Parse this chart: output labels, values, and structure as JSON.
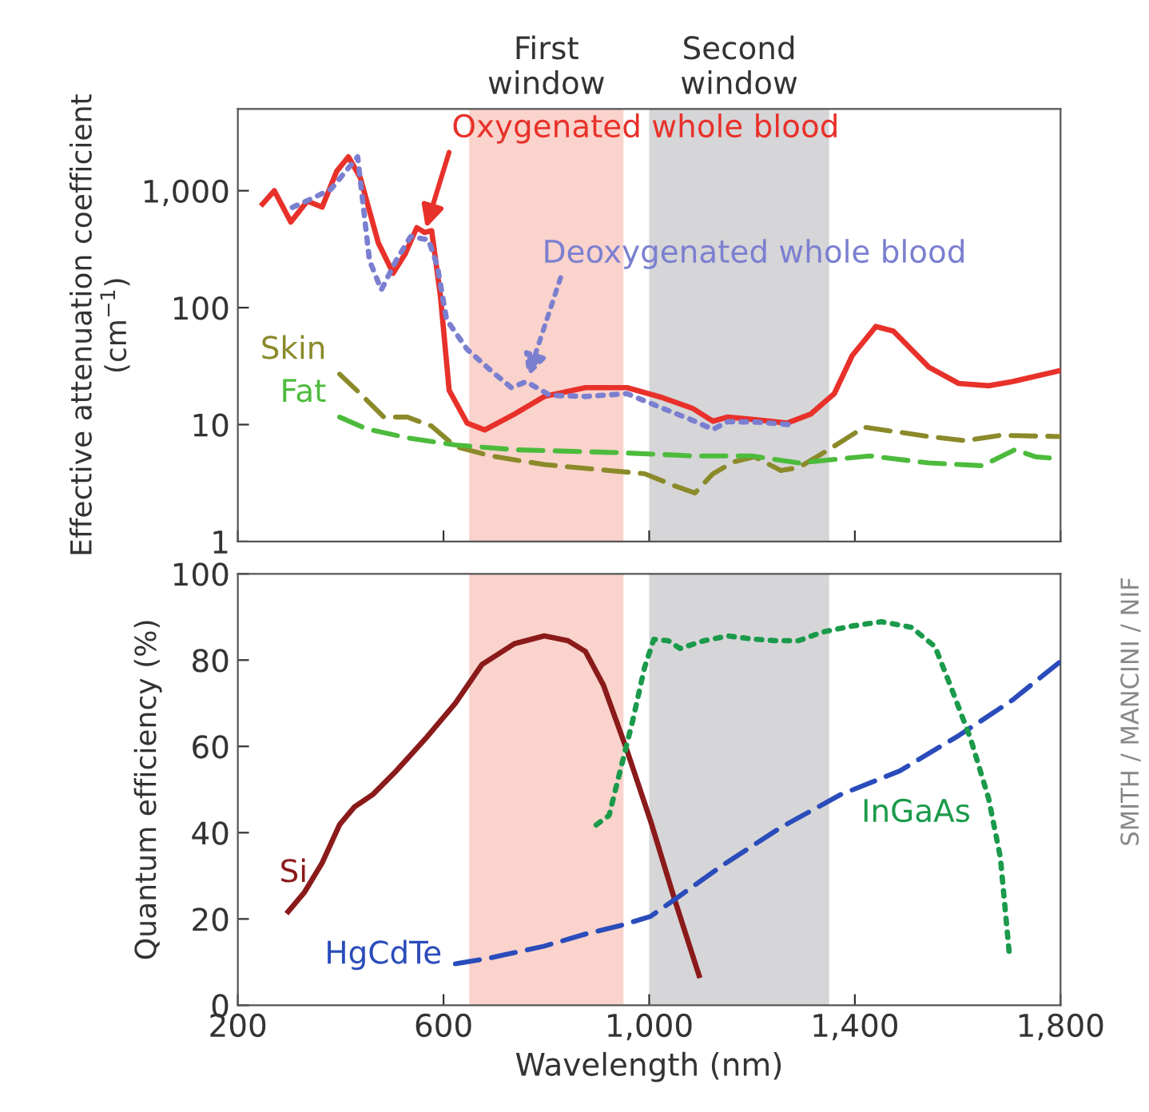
{
  "chart_data": [
    {
      "type": "line",
      "ylabel": "Effective attenuation coefficient\n(cm$^{−1}$)",
      "log": "y",
      "xlim": [
        200,
        1800
      ],
      "xticks": [
        200,
        600,
        1000,
        1400,
        1800
      ],
      "ylim": [
        1,
        5000
      ],
      "yticks": [
        1,
        10,
        100,
        {
          "value": 1000,
          "label": "1,000"
        }
      ],
      "tick_labels": "y",
      "grid": false,
      "legend": false,
      "bands": [
        {
          "axis": "x",
          "from": 650,
          "to": 950,
          "label": "First\nwindow",
          "color": "#f9d3cc"
        },
        {
          "axis": "x",
          "from": 1000,
          "to": 1350,
          "label": "Second\nwindow",
          "color": "#d6d5d7"
        }
      ],
      "series": [
        {
          "name": "Oxygenated whole blood",
          "color": "#e8312a",
          "line_style": "solid",
          "x": [
            248,
            271,
            303,
            335,
            364,
            392,
            415,
            438,
            473,
            502,
            525,
            548,
            563,
            577,
            594,
            611,
            646,
            680,
            738,
            796,
            876,
            957,
            1026,
            1084,
            1124,
            1153,
            1210,
            1268,
            1314,
            1360,
            1395,
            1441,
            1475,
            1544,
            1602,
            1660,
            1706,
            1800
          ],
          "values": [
            770,
            1000,
            540,
            815,
            725,
            1460,
            1950,
            1300,
            360,
            197,
            286,
            483,
            440,
            455,
            126,
            19.6,
            10.3,
            9,
            12.3,
            17.4,
            20.7,
            20.7,
            17,
            13.8,
            10.7,
            11.6,
            11,
            10.3,
            12.3,
            18.4,
            39,
            69,
            63,
            31,
            22.5,
            21.5,
            23.3,
            29
          ]
        },
        {
          "name": "Deoxygenated whole blood",
          "color": "#7b7fd0",
          "line_style": "dotted",
          "x": [
            306,
            346,
            381,
            433,
            456,
            479,
            508,
            536,
            571,
            588,
            606,
            646,
            692,
            732,
            761,
            807,
            876,
            957,
            1026,
            1084,
            1124,
            1153,
            1210,
            1274
          ],
          "values": [
            720,
            865,
            1030,
            1950,
            254,
            142,
            254,
            405,
            380,
            226,
            79,
            44,
            29,
            20.7,
            23.3,
            17.8,
            17.4,
            18.4,
            13.8,
            10.9,
            9.1,
            10.6,
            10.5,
            10
          ]
        },
        {
          "name": "Skin",
          "color": "#8b8a2a",
          "line_style": "dashed",
          "x": [
            398,
            438,
            484,
            530,
            577,
            623,
            692,
            796,
            922,
            991,
            1049,
            1089,
            1124,
            1164,
            1205,
            1256,
            1291,
            1349,
            1418,
            1487,
            1544,
            1614,
            1683,
            1800
          ],
          "values": [
            27,
            18.4,
            11.6,
            11.6,
            9.7,
            6.5,
            5.4,
            4.55,
            4.05,
            3.8,
            3.0,
            2.6,
            3.8,
            4.8,
            5.3,
            4.05,
            4.3,
            6.1,
            9.5,
            8.6,
            7.9,
            7.3,
            8.1,
            7.9
          ]
        },
        {
          "name": "Fat",
          "color": "#4cbb3c",
          "line_style": "dashed",
          "x": [
            398,
            450,
            530,
            623,
            738,
            945,
            1084,
            1199,
            1291,
            1429,
            1544,
            1648,
            1711,
            1752,
            1800
          ],
          "values": [
            11.6,
            9.2,
            7.7,
            6.7,
            6.1,
            5.75,
            5.4,
            5.4,
            4.7,
            5.4,
            4.7,
            4.45,
            6.1,
            5.3,
            5.1
          ]
        }
      ]
    },
    {
      "type": "line",
      "xlabel": "Wavelength (nm)",
      "ylabel": "Quantum efficiency (%)",
      "xlim": [
        200,
        1800
      ],
      "xticks": [
        200,
        600,
        {
          "value": 1000,
          "label": "1,000"
        },
        {
          "value": 1400,
          "label": "1,400"
        },
        {
          "value": 1800,
          "label": "1,800"
        }
      ],
      "ylim": [
        0,
        100
      ],
      "yticks": [
        0,
        20,
        40,
        60,
        80,
        100
      ],
      "grid": false,
      "legend": false,
      "bands": [
        {
          "axis": "x",
          "from": 650,
          "to": 950,
          "color": "#f9d3cc"
        },
        {
          "axis": "x",
          "from": 1000,
          "to": 1350,
          "color": "#d6d5d7"
        }
      ],
      "annotations": [
        "SMITH / MANCINI / NIF"
      ],
      "series": [
        {
          "name": "Si",
          "color": "#8b1a1a",
          "line_style": "solid",
          "x": [
            298,
            329,
            364,
            398,
            427,
            462,
            508,
            565,
            623,
            675,
            738,
            796,
            842,
            876,
            911,
            957,
            1003,
            1049,
            1097
          ],
          "values": [
            21.7,
            26.1,
            33,
            41.9,
            46,
            48.8,
            54.3,
            61.8,
            70,
            79,
            83.8,
            85.6,
            84.5,
            82,
            74.2,
            59,
            42.6,
            24.7,
            6.9
          ]
        },
        {
          "name": "HgCdTe",
          "color": "#2a4cbb",
          "line_style": "dashed",
          "x": [
            623,
            692,
            796,
            876,
            945,
            1003,
            1060,
            1141,
            1256,
            1372,
            1487,
            1602,
            1706,
            1800
          ],
          "values": [
            9.6,
            11,
            13.7,
            16.5,
            18.5,
            20.6,
            25.4,
            32.3,
            41.2,
            48.8,
            54.3,
            62.5,
            70.7,
            79.7
          ]
        },
        {
          "name": "InGaAs",
          "color": "#1a9a4a",
          "line_style": "dotted",
          "x": [
            897,
            922,
            945,
            968,
            991,
            1009,
            1037,
            1060,
            1107,
            1153,
            1199,
            1245,
            1291,
            1337,
            1395,
            1452,
            1510,
            1556,
            1590,
            1625,
            1660,
            1683,
            1700
          ],
          "values": [
            41.8,
            44,
            55,
            66,
            78.3,
            84.8,
            84.5,
            82.7,
            84.5,
            85.6,
            84.9,
            84.5,
            84.5,
            86.5,
            87.9,
            88.9,
            87.6,
            83.1,
            72.8,
            61.8,
            48,
            34.3,
            12.4
          ]
        }
      ]
    }
  ]
}
